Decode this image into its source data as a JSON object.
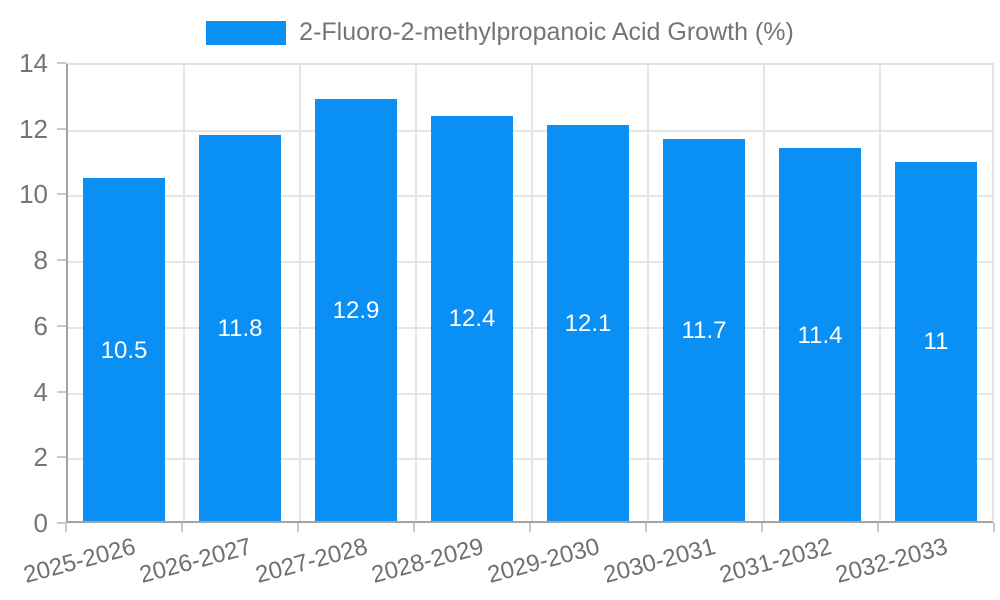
{
  "legend": {
    "label": "2-Fluoro-2-methylpropanoic Acid Growth (%)",
    "swatch_color": "#0a8ff5"
  },
  "chart_data": {
    "type": "bar",
    "title": "",
    "xlabel": "",
    "ylabel": "",
    "categories": [
      "2025-2026",
      "2026-2027",
      "2027-2028",
      "2028-2029",
      "2029-2030",
      "2030-2031",
      "2031-2032",
      "2032-2033"
    ],
    "values": [
      10.5,
      11.8,
      12.9,
      12.4,
      12.1,
      11.7,
      11.4,
      11
    ],
    "value_labels": [
      "10.5",
      "11.8",
      "12.9",
      "12.4",
      "12.1",
      "11.7",
      "11.4",
      "11"
    ],
    "ylim": [
      0,
      14
    ],
    "yticks": [
      0,
      2,
      4,
      6,
      8,
      10,
      12,
      14
    ],
    "grid": true,
    "legend_position": "top-center",
    "bar_color": "#0a8ff5",
    "value_label_color": "#ffffff",
    "axis_label_color": "#757575",
    "gridline_color": "#e5e5e5",
    "axis_line_color": "#a3a3a3"
  }
}
